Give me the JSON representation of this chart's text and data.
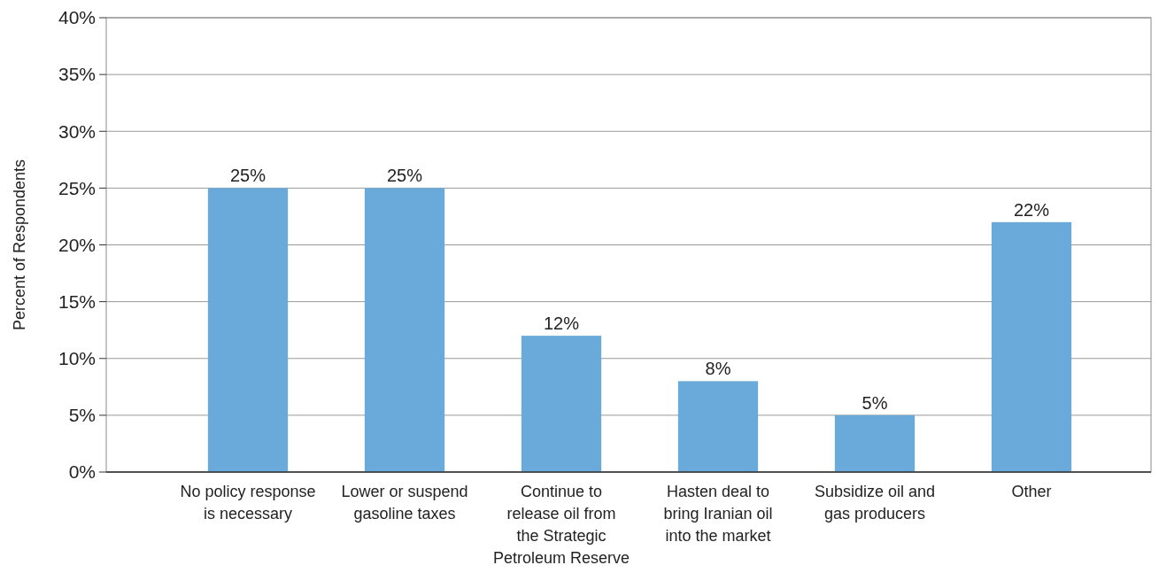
{
  "chart_data": {
    "type": "bar",
    "ylabel": "Percent of Respondents",
    "categories": [
      "No policy response is necessary",
      "Lower or suspend gasoline taxes",
      "Continue to release oil from the Strategic Petroleum Reserve",
      "Hasten deal to bring Iranian oil into the market",
      "Subsidize oil and gas producers",
      "Other"
    ],
    "values": [
      25,
      25,
      12,
      8,
      5,
      22
    ],
    "color": "#6aaadb",
    "ylim": [
      0,
      40
    ],
    "yticks": [
      {
        "value": 0,
        "label": "0%"
      },
      {
        "value": 5,
        "label": "5%"
      },
      {
        "value": 10,
        "label": "10%"
      },
      {
        "value": 15,
        "label": "15%"
      },
      {
        "value": 20,
        "label": "20%"
      },
      {
        "value": 25,
        "label": "25%"
      },
      {
        "value": 30,
        "label": "30%"
      },
      {
        "value": 35,
        "label": "35%"
      },
      {
        "value": 40,
        "label": "40%"
      }
    ],
    "value_labels": [
      "25%",
      "25%",
      "12%",
      "8%",
      "5%",
      "22%"
    ],
    "grid": "y"
  }
}
